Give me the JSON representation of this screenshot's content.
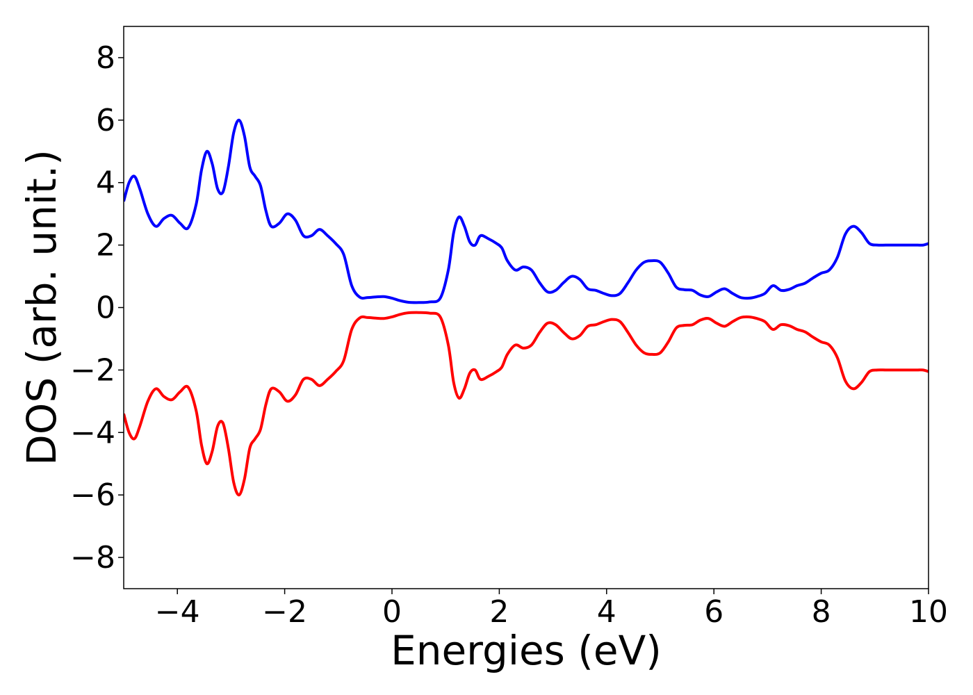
{
  "chart_data": {
    "type": "line",
    "title": "",
    "xlabel": "Energies (eV)",
    "ylabel": "DOS (arb. unit.)",
    "xlim": [
      -5,
      10
    ],
    "ylim": [
      -9,
      9
    ],
    "xticks": [
      -4,
      -2,
      0,
      2,
      4,
      6,
      8,
      10
    ],
    "xtick_labels": [
      "−4",
      "−2",
      "0",
      "2",
      "4",
      "6",
      "8",
      "10"
    ],
    "yticks": [
      -8,
      -6,
      -4,
      -2,
      0,
      2,
      4,
      6,
      8
    ],
    "ytick_labels": [
      "−8",
      "−6",
      "−4",
      "−2",
      "0",
      "2",
      "4",
      "6",
      "8"
    ],
    "grid": false,
    "legend": "none",
    "series": [
      {
        "color": "#0000ff",
        "x": [
          -5.0,
          -4.9,
          -4.8,
          -4.7,
          -4.55,
          -4.4,
          -4.25,
          -4.1,
          -3.95,
          -3.8,
          -3.65,
          -3.55,
          -3.45,
          -3.35,
          -3.25,
          -3.15,
          -3.05,
          -2.95,
          -2.85,
          -2.75,
          -2.65,
          -2.55,
          -2.45,
          -2.35,
          -2.25,
          -2.1,
          -1.95,
          -1.8,
          -1.65,
          -1.5,
          -1.35,
          -1.2,
          -1.05,
          -0.9,
          -0.75,
          -0.6,
          -0.45,
          -0.3,
          -0.15,
          0.0,
          0.15,
          0.3,
          0.5,
          0.7,
          0.9,
          1.05,
          1.15,
          1.25,
          1.35,
          1.45,
          1.55,
          1.65,
          1.8,
          1.95,
          2.05,
          2.15,
          2.3,
          2.45,
          2.6,
          2.75,
          2.9,
          3.05,
          3.2,
          3.35,
          3.5,
          3.65,
          3.8,
          3.95,
          4.1,
          4.25,
          4.4,
          4.55,
          4.7,
          4.85,
          5.0,
          5.15,
          5.3,
          5.45,
          5.6,
          5.75,
          5.9,
          6.05,
          6.2,
          6.35,
          6.5,
          6.65,
          6.8,
          6.95,
          7.1,
          7.25,
          7.4,
          7.55,
          7.7,
          7.85,
          8.0,
          8.15,
          8.3,
          8.45,
          8.6,
          8.75,
          8.9,
          9.05,
          9.2,
          9.35,
          9.5,
          9.6,
          9.7,
          9.8,
          9.9,
          10.0
        ],
        "y": [
          3.4,
          4.0,
          4.2,
          3.8,
          3.0,
          2.6,
          2.85,
          2.95,
          2.7,
          2.55,
          3.3,
          4.4,
          5.0,
          4.6,
          3.8,
          3.7,
          4.5,
          5.6,
          6.0,
          5.5,
          4.5,
          4.2,
          3.9,
          3.1,
          2.6,
          2.7,
          3.0,
          2.8,
          2.3,
          2.3,
          2.5,
          2.3,
          2.05,
          1.7,
          0.7,
          0.33,
          0.32,
          0.34,
          0.35,
          0.3,
          0.22,
          0.17,
          0.16,
          0.18,
          0.3,
          1.2,
          2.4,
          2.9,
          2.6,
          2.1,
          2.0,
          2.3,
          2.2,
          2.05,
          1.9,
          1.5,
          1.2,
          1.3,
          1.2,
          0.8,
          0.5,
          0.55,
          0.8,
          1.0,
          0.9,
          0.6,
          0.55,
          0.45,
          0.38,
          0.45,
          0.8,
          1.2,
          1.45,
          1.5,
          1.45,
          1.1,
          0.65,
          0.57,
          0.55,
          0.4,
          0.35,
          0.5,
          0.6,
          0.45,
          0.32,
          0.3,
          0.35,
          0.45,
          0.7,
          0.55,
          0.58,
          0.7,
          0.78,
          0.95,
          1.1,
          1.2,
          1.6,
          2.35,
          2.6,
          2.4,
          2.05,
          2.0,
          2.0,
          2.0,
          2.0,
          2.0,
          2.0,
          2.0,
          2.0,
          2.05
        ]
      },
      {
        "color": "#ff0000",
        "x": [
          -5.0,
          -4.9,
          -4.8,
          -4.7,
          -4.55,
          -4.4,
          -4.25,
          -4.1,
          -3.95,
          -3.8,
          -3.65,
          -3.55,
          -3.45,
          -3.35,
          -3.25,
          -3.15,
          -3.05,
          -2.95,
          -2.85,
          -2.75,
          -2.65,
          -2.55,
          -2.45,
          -2.35,
          -2.25,
          -2.1,
          -1.95,
          -1.8,
          -1.65,
          -1.5,
          -1.35,
          -1.2,
          -1.05,
          -0.9,
          -0.75,
          -0.6,
          -0.45,
          -0.3,
          -0.15,
          0.0,
          0.15,
          0.3,
          0.5,
          0.7,
          0.9,
          1.05,
          1.15,
          1.25,
          1.35,
          1.45,
          1.55,
          1.65,
          1.8,
          1.95,
          2.05,
          2.15,
          2.3,
          2.45,
          2.6,
          2.75,
          2.9,
          3.05,
          3.2,
          3.35,
          3.5,
          3.65,
          3.8,
          3.95,
          4.1,
          4.25,
          4.4,
          4.55,
          4.7,
          4.85,
          5.0,
          5.15,
          5.3,
          5.45,
          5.6,
          5.75,
          5.9,
          6.05,
          6.2,
          6.35,
          6.5,
          6.65,
          6.8,
          6.95,
          7.1,
          7.25,
          7.4,
          7.55,
          7.7,
          7.85,
          8.0,
          8.15,
          8.3,
          8.45,
          8.6,
          8.75,
          8.9,
          9.05,
          9.2,
          9.35,
          9.5,
          9.6,
          9.7,
          9.8,
          9.9,
          10.0
        ],
        "y": [
          -3.4,
          -4.0,
          -4.2,
          -3.8,
          -3.0,
          -2.6,
          -2.85,
          -2.95,
          -2.7,
          -2.55,
          -3.3,
          -4.4,
          -5.0,
          -4.6,
          -3.8,
          -3.7,
          -4.5,
          -5.6,
          -6.0,
          -5.5,
          -4.5,
          -4.2,
          -3.9,
          -3.1,
          -2.6,
          -2.7,
          -3.0,
          -2.8,
          -2.3,
          -2.3,
          -2.5,
          -2.3,
          -2.05,
          -1.7,
          -0.7,
          -0.33,
          -0.32,
          -0.34,
          -0.35,
          -0.3,
          -0.22,
          -0.17,
          -0.16,
          -0.18,
          -0.3,
          -1.2,
          -2.4,
          -2.9,
          -2.6,
          -2.1,
          -2.0,
          -2.3,
          -2.2,
          -2.05,
          -1.9,
          -1.5,
          -1.2,
          -1.3,
          -1.2,
          -0.8,
          -0.5,
          -0.55,
          -0.8,
          -1.0,
          -0.9,
          -0.6,
          -0.55,
          -0.45,
          -0.38,
          -0.45,
          -0.8,
          -1.2,
          -1.45,
          -1.5,
          -1.45,
          -1.1,
          -0.65,
          -0.57,
          -0.55,
          -0.4,
          -0.35,
          -0.5,
          -0.6,
          -0.45,
          -0.32,
          -0.3,
          -0.35,
          -0.45,
          -0.7,
          -0.55,
          -0.58,
          -0.7,
          -0.78,
          -0.95,
          -1.1,
          -1.2,
          -1.6,
          -2.35,
          -2.6,
          -2.4,
          -2.05,
          -2.0,
          -2.0,
          -2.0,
          -2.0,
          -2.0,
          -2.0,
          -2.0,
          -2.0,
          -2.05
        ]
      }
    ]
  }
}
